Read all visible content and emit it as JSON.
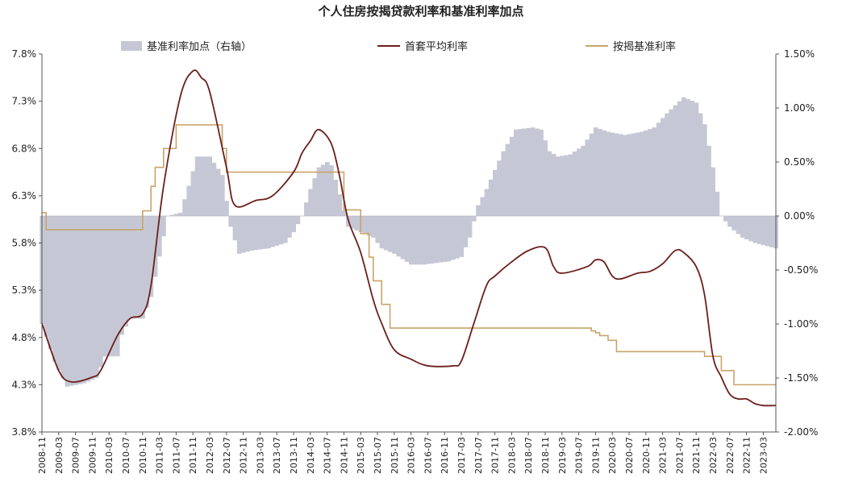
{
  "chart_data": {
    "type": "line",
    "title": "个人住房按揭贷款利率和基准利率加点",
    "legend": [
      "基准利率加点（右轴）",
      "首套平均利率",
      "按揭基准利率"
    ],
    "colors": {
      "spread": "#c5c8d4",
      "first_home_rate": "#6b1f1a",
      "benchmark_rate": "#c9a46a"
    },
    "y_left": {
      "range": [
        3.8,
        7.8
      ],
      "ticks": [
        "7.8%",
        "7.3%",
        "6.8%",
        "6.3%",
        "5.8%",
        "5.3%",
        "4.8%",
        "4.3%",
        "3.8%"
      ]
    },
    "y_right": {
      "range": [
        -2.0,
        1.5
      ],
      "ticks": [
        "1.50%",
        "1.00%",
        "0.50%",
        "0.00%",
        "-0.50%",
        "-1.00%",
        "-1.50%",
        "-2.00%"
      ]
    },
    "x_tick_labels": [
      "2008-11",
      "2009-03",
      "2009-07",
      "2009-11",
      "2010-03",
      "2010-07",
      "2010-11",
      "2011-03",
      "2011-07",
      "2011-11",
      "2012-03",
      "2012-07",
      "2012-11",
      "2013-03",
      "2013-07",
      "2013-11",
      "2014-03",
      "2014-07",
      "2014-11",
      "2015-03",
      "2015-07",
      "2015-11",
      "2016-03",
      "2016-07",
      "2016-11",
      "2017-03",
      "2017-07",
      "2017-11",
      "2018-03",
      "2018-07",
      "2018-11",
      "2019-03",
      "2019-07",
      "2019-11",
      "2020-03",
      "2020-07",
      "2020-11",
      "2021-03",
      "2021-07",
      "2021-11",
      "2022-03",
      "2022-07",
      "2022-11",
      "2023-03"
    ],
    "series": [
      {
        "name": "首套平均利率",
        "axis": "left",
        "points": [
          [
            "2008-11",
            4.95
          ],
          [
            "2009-03",
            4.45
          ],
          [
            "2009-06",
            4.33
          ],
          [
            "2009-11",
            4.38
          ],
          [
            "2010-01",
            4.45
          ],
          [
            "2010-05",
            4.82
          ],
          [
            "2010-08",
            5.0
          ],
          [
            "2010-11",
            5.05
          ],
          [
            "2011-01",
            5.35
          ],
          [
            "2011-04",
            6.4
          ],
          [
            "2011-08",
            7.35
          ],
          [
            "2011-11",
            7.62
          ],
          [
            "2012-01",
            7.55
          ],
          [
            "2012-03",
            7.4
          ],
          [
            "2012-07",
            6.6
          ],
          [
            "2012-09",
            6.2
          ],
          [
            "2013-02",
            6.25
          ],
          [
            "2013-06",
            6.3
          ],
          [
            "2013-11",
            6.55
          ],
          [
            "2014-01",
            6.75
          ],
          [
            "2014-03",
            6.88
          ],
          [
            "2014-05",
            7.0
          ],
          [
            "2014-08",
            6.85
          ],
          [
            "2014-10",
            6.5
          ],
          [
            "2014-12",
            6.05
          ],
          [
            "2015-03",
            5.7
          ],
          [
            "2015-06",
            5.2
          ],
          [
            "2015-08",
            4.95
          ],
          [
            "2015-11",
            4.67
          ],
          [
            "2016-03",
            4.57
          ],
          [
            "2016-07",
            4.5
          ],
          [
            "2017-01",
            4.5
          ],
          [
            "2017-03",
            4.55
          ],
          [
            "2017-06",
            4.95
          ],
          [
            "2017-09",
            5.35
          ],
          [
            "2017-11",
            5.45
          ],
          [
            "2018-03",
            5.6
          ],
          [
            "2018-07",
            5.72
          ],
          [
            "2018-11",
            5.75
          ],
          [
            "2019-01",
            5.55
          ],
          [
            "2019-03",
            5.48
          ],
          [
            "2019-09",
            5.55
          ],
          [
            "2019-11",
            5.62
          ],
          [
            "2020-01",
            5.6
          ],
          [
            "2020-03",
            5.45
          ],
          [
            "2020-05",
            5.42
          ],
          [
            "2020-09",
            5.48
          ],
          [
            "2020-12",
            5.5
          ],
          [
            "2021-03",
            5.58
          ],
          [
            "2021-06",
            5.72
          ],
          [
            "2021-08",
            5.7
          ],
          [
            "2021-11",
            5.55
          ],
          [
            "2022-01",
            5.25
          ],
          [
            "2022-03",
            4.6
          ],
          [
            "2022-05",
            4.38
          ],
          [
            "2022-07",
            4.2
          ],
          [
            "2022-09",
            4.15
          ],
          [
            "2022-11",
            4.15
          ],
          [
            "2023-01",
            4.1
          ],
          [
            "2023-03",
            4.08
          ],
          [
            "2023-06",
            4.08
          ]
        ]
      },
      {
        "name": "按揭基准利率",
        "axis": "left",
        "points": [
          [
            "2008-11",
            6.12
          ],
          [
            "2008-12",
            5.94
          ],
          [
            "2010-10",
            5.94
          ],
          [
            "2010-11",
            6.14
          ],
          [
            "2011-01",
            6.4
          ],
          [
            "2011-02",
            6.6
          ],
          [
            "2011-04",
            6.8
          ],
          [
            "2011-07",
            7.05
          ],
          [
            "2012-06",
            6.8
          ],
          [
            "2012-07",
            6.55
          ],
          [
            "2014-11",
            6.15
          ],
          [
            "2014-12",
            6.15
          ],
          [
            "2015-03",
            5.9
          ],
          [
            "2015-05",
            5.65
          ],
          [
            "2015-06",
            5.4
          ],
          [
            "2015-08",
            5.15
          ],
          [
            "2015-10",
            4.9
          ],
          [
            "2019-10",
            4.87
          ],
          [
            "2019-11",
            4.85
          ],
          [
            "2019-12",
            4.82
          ],
          [
            "2020-02",
            4.77
          ],
          [
            "2020-04",
            4.65
          ],
          [
            "2022-01",
            4.6
          ],
          [
            "2022-05",
            4.45
          ],
          [
            "2022-08",
            4.3
          ],
          [
            "2023-06",
            4.3
          ]
        ]
      },
      {
        "name": "基准利率加点（右轴）",
        "axis": "right",
        "type": "area",
        "points": [
          [
            "2008-11",
            -1.0
          ],
          [
            "2009-02",
            -1.35
          ],
          [
            "2009-05",
            -1.58
          ],
          [
            "2009-09",
            -1.55
          ],
          [
            "2009-12",
            -1.5
          ],
          [
            "2010-02",
            -1.3
          ],
          [
            "2010-05",
            -1.3
          ],
          [
            "2010-06",
            -1.1
          ],
          [
            "2010-08",
            -0.95
          ],
          [
            "2010-11",
            -0.95
          ],
          [
            "2011-01",
            -0.75
          ],
          [
            "2011-05",
            0.0
          ],
          [
            "2011-08",
            0.03
          ],
          [
            "2011-10",
            0.28
          ],
          [
            "2011-12",
            0.55
          ],
          [
            "2012-03",
            0.55
          ],
          [
            "2012-06",
            0.38
          ],
          [
            "2012-08",
            -0.1
          ],
          [
            "2012-10",
            -0.35
          ],
          [
            "2013-01",
            -0.32
          ],
          [
            "2013-05",
            -0.3
          ],
          [
            "2013-09",
            -0.25
          ],
          [
            "2013-11",
            -0.15
          ],
          [
            "2014-01",
            0.0
          ],
          [
            "2014-03",
            0.25
          ],
          [
            "2014-05",
            0.45
          ],
          [
            "2014-07",
            0.5
          ],
          [
            "2014-08",
            0.47
          ],
          [
            "2014-10",
            0.2
          ],
          [
            "2014-12",
            -0.1
          ],
          [
            "2015-03",
            -0.15
          ],
          [
            "2015-06",
            -0.2
          ],
          [
            "2015-08",
            -0.3
          ],
          [
            "2015-11",
            -0.35
          ],
          [
            "2016-03",
            -0.45
          ],
          [
            "2016-06",
            -0.45
          ],
          [
            "2016-12",
            -0.42
          ],
          [
            "2017-03",
            -0.38
          ],
          [
            "2017-05",
            -0.2
          ],
          [
            "2017-07",
            0.1
          ],
          [
            "2017-09",
            0.25
          ],
          [
            "2018-01",
            0.6
          ],
          [
            "2018-04",
            0.8
          ],
          [
            "2018-08",
            0.82
          ],
          [
            "2018-10",
            0.8
          ],
          [
            "2018-12",
            0.6
          ],
          [
            "2019-02",
            0.55
          ],
          [
            "2019-05",
            0.57
          ],
          [
            "2019-08",
            0.65
          ],
          [
            "2019-11",
            0.82
          ],
          [
            "2020-02",
            0.78
          ],
          [
            "2020-06",
            0.75
          ],
          [
            "2020-10",
            0.78
          ],
          [
            "2021-01",
            0.82
          ],
          [
            "2021-04",
            0.95
          ],
          [
            "2021-08",
            1.1
          ],
          [
            "2021-11",
            1.05
          ],
          [
            "2022-01",
            0.85
          ],
          [
            "2022-03",
            0.45
          ],
          [
            "2022-05",
            0.0
          ],
          [
            "2022-07",
            -0.1
          ],
          [
            "2022-10",
            -0.2
          ],
          [
            "2023-01",
            -0.25
          ],
          [
            "2023-06",
            -0.3
          ]
        ]
      }
    ]
  }
}
